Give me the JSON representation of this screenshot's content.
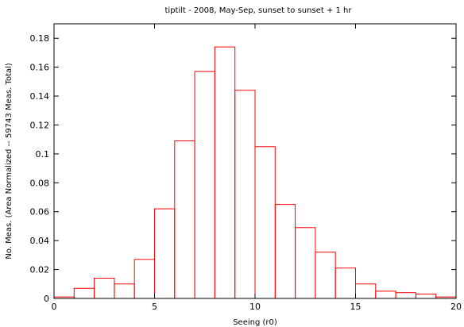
{
  "chart_data": {
    "type": "bar",
    "title": "tiptilt - 2008, May-Sep, sunset to sunset + 1 hr",
    "xlabel": "Seeing (r0)",
    "ylabel": "No. Meas. (Area Normalized -- 59743 Meas. Total)",
    "xlim": [
      0,
      20
    ],
    "ylim": [
      0,
      0.19
    ],
    "xticks": [
      0,
      5,
      10,
      15,
      20
    ],
    "yticks": [
      0,
      0.02,
      0.04,
      0.06,
      0.08,
      0.1,
      0.12,
      0.14,
      0.16,
      0.18
    ],
    "bin_width": 1,
    "series": [
      {
        "color": "#ff0000",
        "bins": [
          {
            "x": 0,
            "value": 0.001
          },
          {
            "x": 1,
            "value": 0.007
          },
          {
            "x": 2,
            "value": 0.014
          },
          {
            "x": 3,
            "value": 0.01
          },
          {
            "x": 4,
            "value": 0.027
          },
          {
            "x": 5,
            "value": 0.062
          },
          {
            "x": 6,
            "value": 0.109
          },
          {
            "x": 7,
            "value": 0.157
          },
          {
            "x": 8,
            "value": 0.174
          },
          {
            "x": 9,
            "value": 0.144
          },
          {
            "x": 10,
            "value": 0.105
          },
          {
            "x": 11,
            "value": 0.065
          },
          {
            "x": 12,
            "value": 0.049
          },
          {
            "x": 13,
            "value": 0.032
          },
          {
            "x": 14,
            "value": 0.021
          },
          {
            "x": 15,
            "value": 0.01
          },
          {
            "x": 16,
            "value": 0.005
          },
          {
            "x": 17,
            "value": 0.004
          },
          {
            "x": 18,
            "value": 0.003
          },
          {
            "x": 19,
            "value": 0.001
          }
        ]
      }
    ],
    "grid": false
  }
}
